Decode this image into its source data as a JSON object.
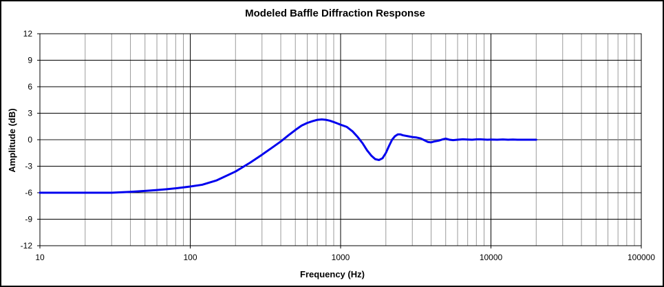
{
  "chart_data": {
    "type": "line",
    "title": "Modeled Baffle Diffraction Response",
    "xlabel": "Frequency (Hz)",
    "ylabel": "Amplitude (dB)",
    "x_scale": "log",
    "xlim": [
      10,
      100000
    ],
    "ylim": [
      -12,
      12
    ],
    "x_ticks": [
      10,
      100,
      1000,
      10000,
      100000
    ],
    "x_tick_labels": [
      "10",
      "100",
      "1000",
      "10000",
      "100000"
    ],
    "y_ticks": [
      -12,
      -9,
      -6,
      -3,
      0,
      3,
      6,
      9,
      12
    ],
    "y_tick_labels": [
      "-12",
      "-9",
      "-6",
      "-3",
      "0",
      "3",
      "6",
      "9",
      "12"
    ],
    "grid": true,
    "legend": "none",
    "series": [
      {
        "color": "#0000ee",
        "x": [
          10,
          20,
          30,
          40,
          50,
          60,
          70,
          80,
          90,
          100,
          120,
          150,
          200,
          250,
          300,
          350,
          400,
          450,
          500,
          550,
          600,
          650,
          700,
          750,
          800,
          850,
          900,
          950,
          1000,
          1100,
          1200,
          1300,
          1400,
          1500,
          1600,
          1700,
          1800,
          1900,
          2000,
          2100,
          2200,
          2300,
          2400,
          2500,
          2600,
          2800,
          3000,
          3200,
          3400,
          3600,
          3800,
          4000,
          4200,
          4500,
          4800,
          5000,
          5300,
          5600,
          6000,
          6500,
          7000,
          7500,
          8000,
          8500,
          9000,
          9500,
          10000,
          11000,
          12000,
          13000,
          14000,
          15000,
          16000,
          17000,
          18000,
          19000,
          20000
        ],
        "y": [
          -6.0,
          -6.0,
          -6.0,
          -5.9,
          -5.8,
          -5.7,
          -5.6,
          -5.5,
          -5.4,
          -5.3,
          -5.1,
          -4.6,
          -3.6,
          -2.6,
          -1.7,
          -0.9,
          -0.2,
          0.5,
          1.1,
          1.6,
          1.9,
          2.1,
          2.25,
          2.3,
          2.25,
          2.15,
          2.0,
          1.85,
          1.7,
          1.45,
          0.95,
          0.3,
          -0.4,
          -1.2,
          -1.8,
          -2.2,
          -2.3,
          -2.1,
          -1.5,
          -0.7,
          0.0,
          0.4,
          0.6,
          0.6,
          0.5,
          0.4,
          0.3,
          0.25,
          0.15,
          -0.05,
          -0.25,
          -0.3,
          -0.2,
          -0.1,
          0.05,
          0.12,
          0.0,
          -0.05,
          0.0,
          0.05,
          0.02,
          0.0,
          0.04,
          0.05,
          0.02,
          0.0,
          0.02,
          0.0,
          0.03,
          0.0,
          0.02,
          0.0,
          0.0,
          0.0,
          0.0,
          0.0,
          0.0
        ]
      }
    ]
  }
}
